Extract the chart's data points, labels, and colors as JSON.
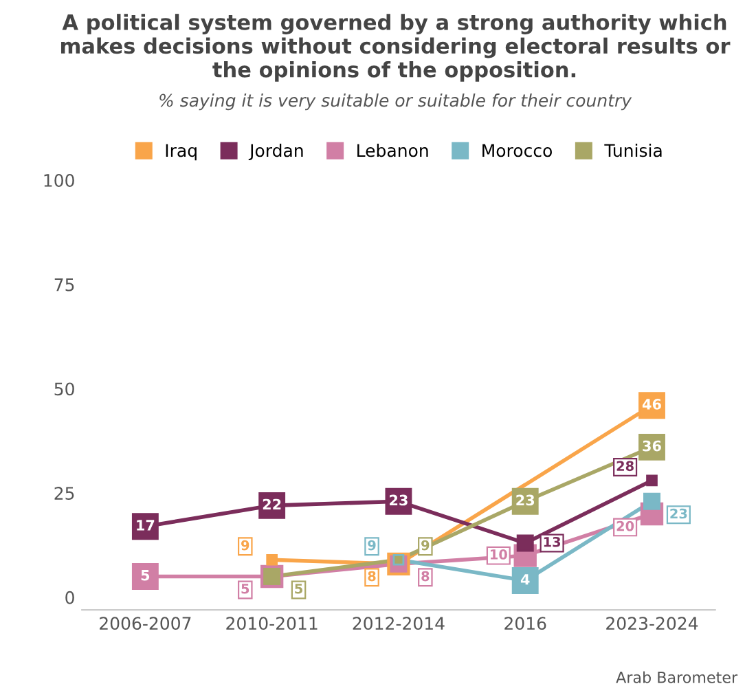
{
  "chart_data": {
    "type": "line",
    "title": "A political system governed by a strong authority which makes decisions without considering electoral results or the opinions of the opposition.",
    "subtitle": "% saying it is very suitable or suitable for their country",
    "categories": [
      "2006-2007",
      "2010-2011",
      "2012-2014",
      "2016",
      "2023-2024"
    ],
    "series": [
      {
        "name": "Iraq",
        "color": "#f9a54a",
        "values": [
          null,
          9,
          8,
          null,
          46
        ]
      },
      {
        "name": "Jordan",
        "color": "#7b2d5b",
        "values": [
          17,
          22,
          23,
          13,
          28
        ]
      },
      {
        "name": "Lebanon",
        "color": "#d17fa5",
        "values": [
          5,
          5,
          8,
          10,
          20
        ]
      },
      {
        "name": "Morocco",
        "color": "#7ab8c6",
        "values": [
          null,
          null,
          9,
          4,
          23
        ]
      },
      {
        "name": "Tunisia",
        "color": "#a9a766",
        "values": [
          null,
          5,
          9,
          23,
          36
        ]
      }
    ],
    "ylim": [
      -3,
      100
    ],
    "yticks": [
      0,
      25,
      50,
      75,
      100
    ],
    "grid": false,
    "legend": "top",
    "marker": "square",
    "line_style": "solid",
    "data_labels": true,
    "annotations": [
      "Arab Barometer"
    ]
  }
}
